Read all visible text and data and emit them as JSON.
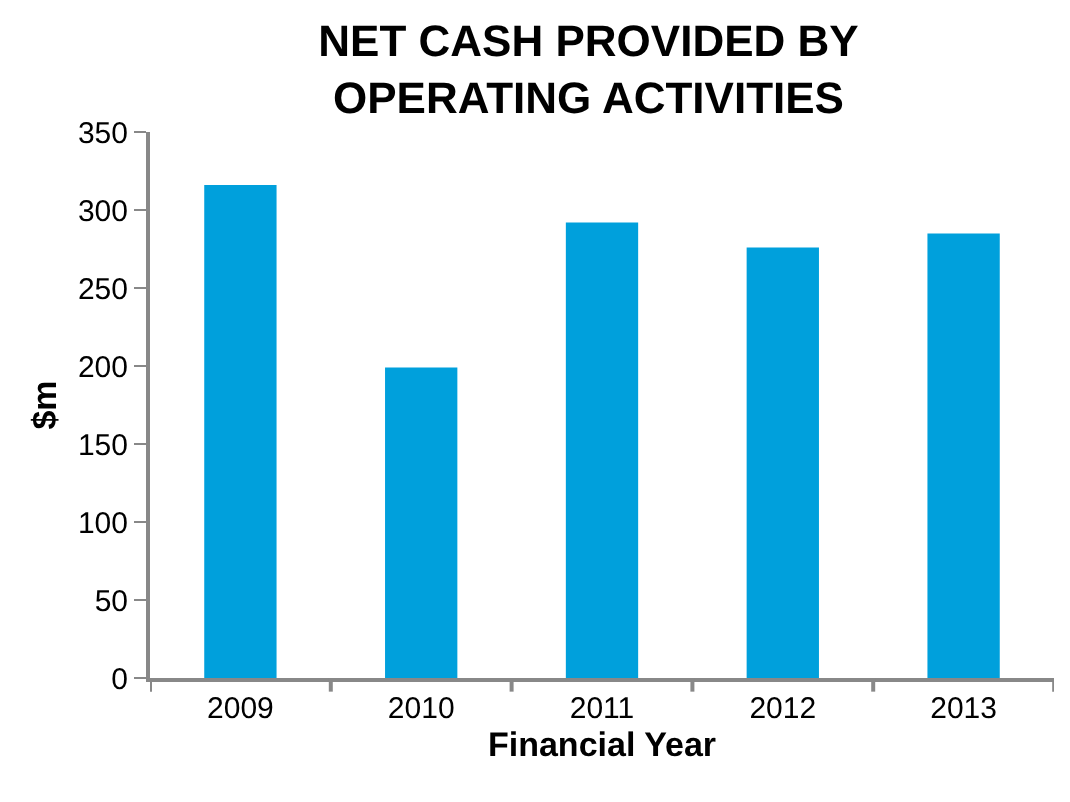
{
  "chart_data": {
    "type": "bar",
    "title": "NET CASH PROVIDED BY\nOPERATING ACTIVITIES",
    "categories": [
      "2009",
      "2010",
      "2011",
      "2012",
      "2013"
    ],
    "values": [
      316,
      199,
      292,
      276,
      285
    ],
    "color": "#00a0dc",
    "xlabel": "Financial Year",
    "ylabel": "$m",
    "ylim": [
      0,
      350
    ],
    "yticks": [
      0,
      50,
      100,
      150,
      200,
      250,
      300,
      350
    ],
    "grid": false
  }
}
